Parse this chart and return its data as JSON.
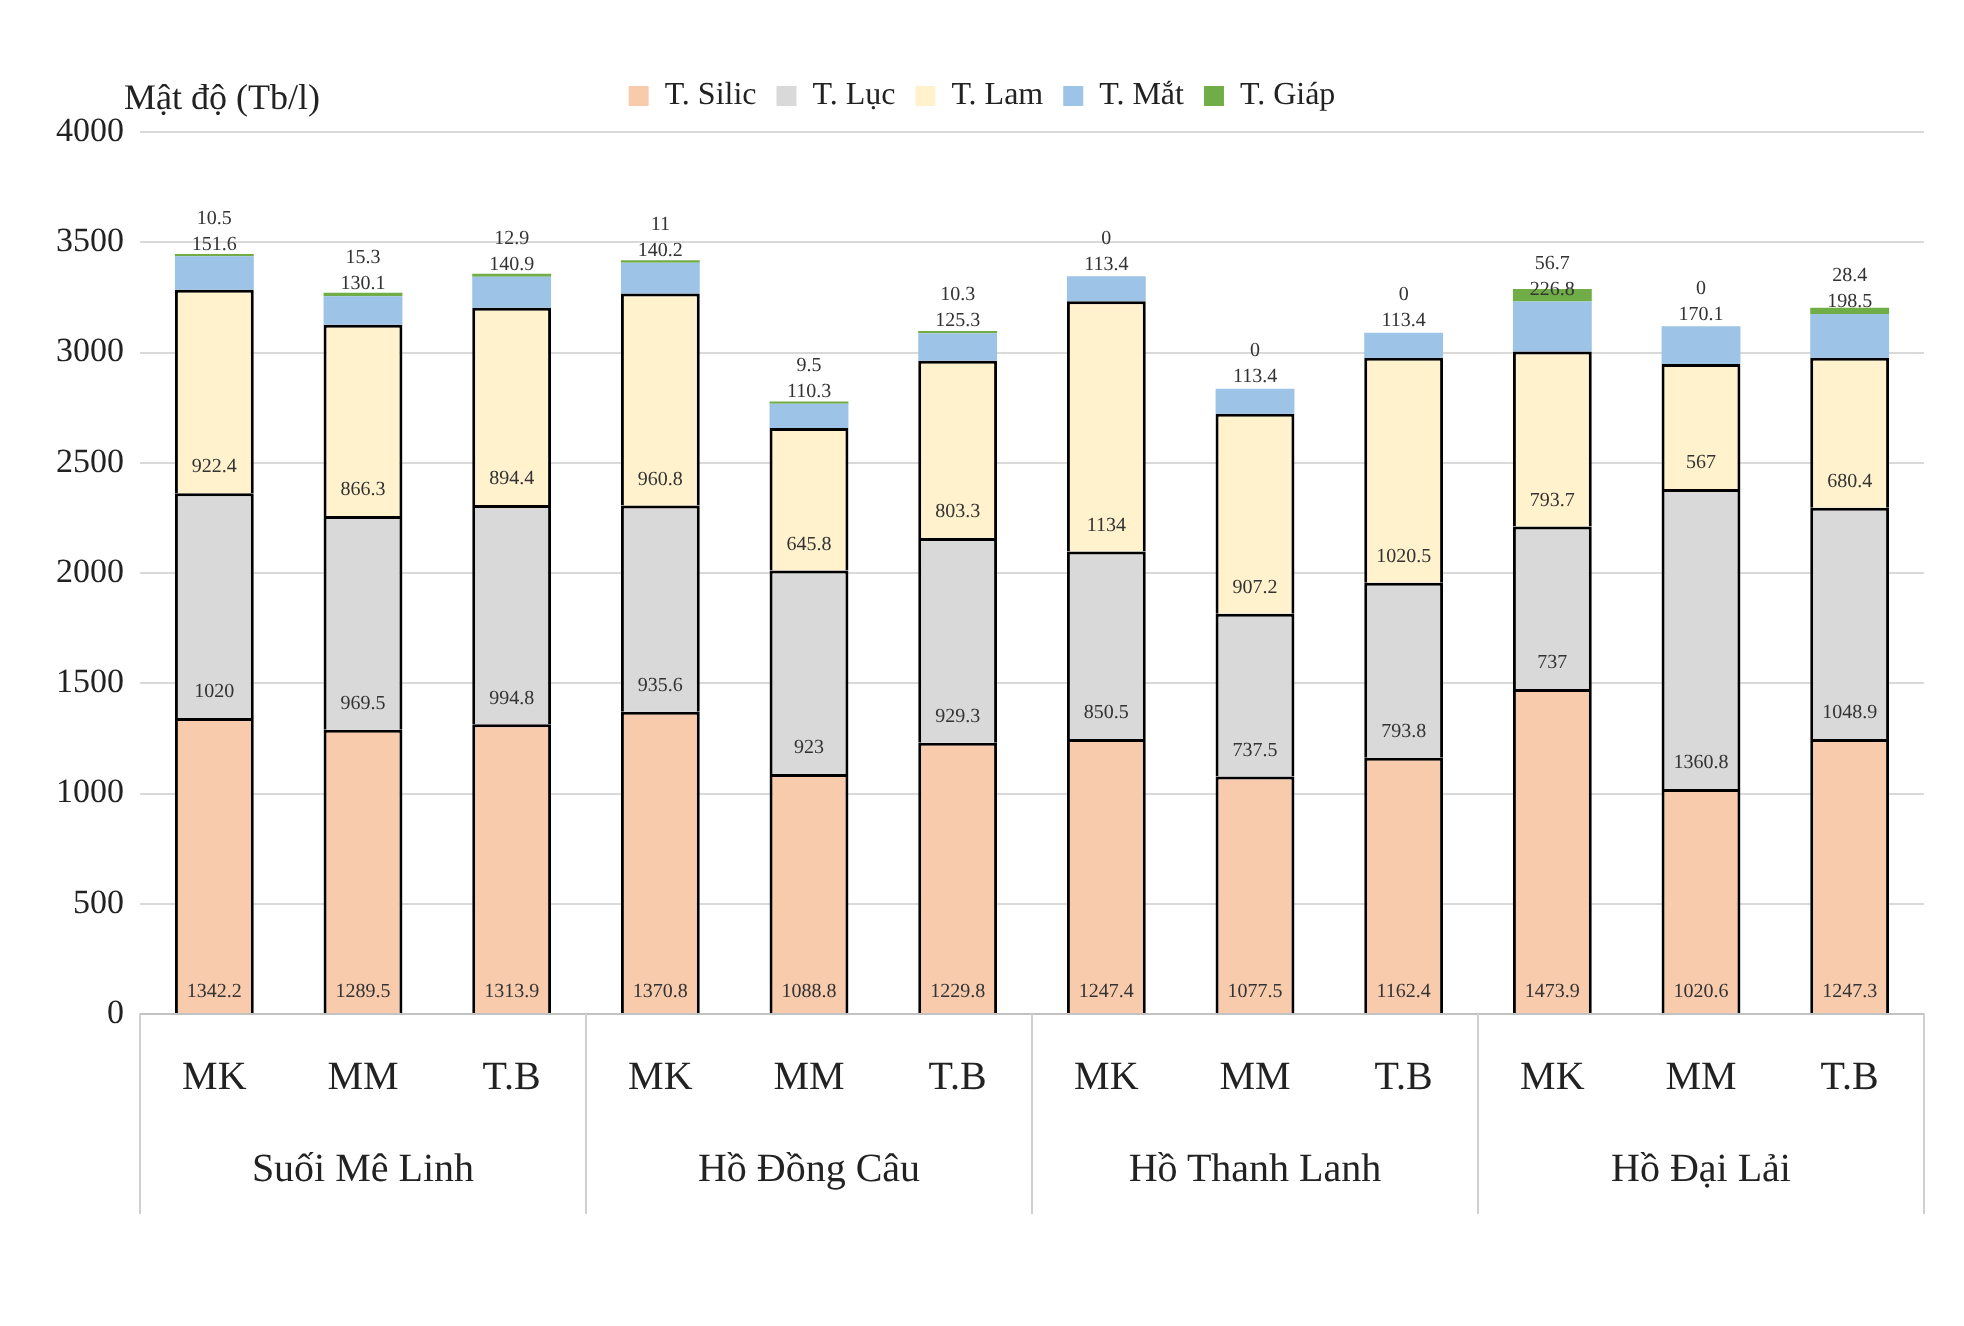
{
  "chart_data": {
    "type": "bar",
    "stacked": true,
    "categories": [
      "MK",
      "MM",
      "T.B",
      "MK",
      "MM",
      "T.B",
      "MK",
      "MM",
      "T.B",
      "MK",
      "MM",
      "T.B"
    ],
    "annotations": [
      "Suối Mê Linh",
      "Hồ Đồng Câu",
      "Hồ Thanh Lanh",
      "Hồ Đại Lải"
    ],
    "ylabel": "Mật độ (Tb/l)",
    "series": [
      {
        "name": "T. Silic",
        "color": "#f8cbad",
        "values": [
          1342.2,
          1289.5,
          1313.9,
          1370.8,
          1088.8,
          1229.8,
          1247.4,
          1077.5,
          1162.4,
          1473.9,
          1020.6,
          1247.3
        ]
      },
      {
        "name": "T. Lục",
        "color": "#d9d9d9",
        "values": [
          1020,
          969.5,
          994.8,
          935.6,
          923,
          929.3,
          850.5,
          737.5,
          793.8,
          737,
          1360.8,
          1048.9
        ]
      },
      {
        "name": "T. Lam",
        "color": "#fff2cc",
        "values": [
          922.4,
          866.3,
          894.4,
          960.8,
          645.8,
          803.3,
          1134,
          907.2,
          1020.5,
          793.7,
          567,
          680.4
        ]
      },
      {
        "name": "T. Mắt",
        "color": "#9dc3e6",
        "values": [
          151.6,
          130.1,
          140.9,
          140.2,
          110.3,
          125.3,
          113.4,
          113.4,
          113.4,
          226.8,
          170.1,
          198.5
        ]
      },
      {
        "name": "T. Giáp",
        "color": "#70ad47",
        "values": [
          10.5,
          15.3,
          12.9,
          11,
          9.5,
          10.3,
          0,
          0,
          0,
          56.7,
          0,
          28.4
        ]
      }
    ],
    "ylim": [
      0,
      4000
    ],
    "yticks": [
      0,
      500,
      1000,
      1500,
      2000,
      2500,
      3000,
      3500,
      4000
    ],
    "grid": "y",
    "legend": "top",
    "data_labels": true
  }
}
